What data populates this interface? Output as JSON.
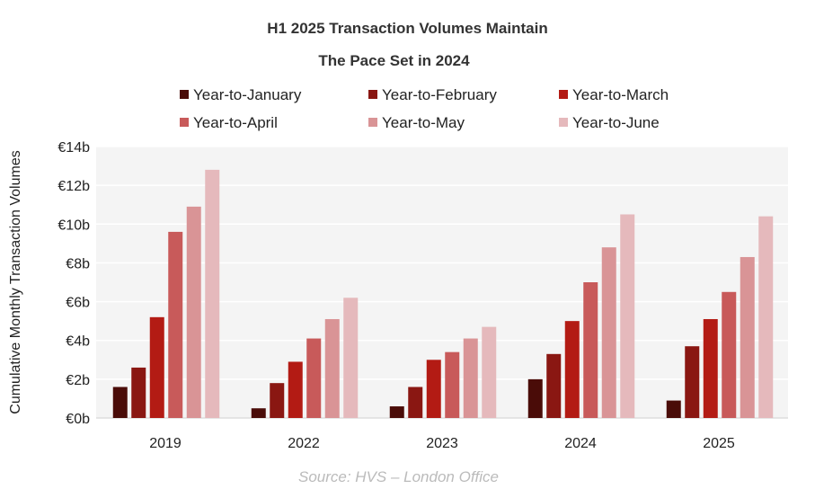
{
  "chart_data": {
    "type": "bar",
    "title_line1": "H1 2025 Transaction Volumes Maintain",
    "title_line2": "The Pace Set in 2024",
    "ylabel": "Cumulative Monthly Transaction Volumes",
    "xlabel": "",
    "categories": [
      "2019",
      "2022",
      "2023",
      "2024",
      "2025"
    ],
    "ylim": [
      0,
      14
    ],
    "yticks": [
      0,
      2,
      4,
      6,
      8,
      10,
      12,
      14
    ],
    "ytick_labels": [
      "€0b",
      "€2b",
      "€4b",
      "€6b",
      "€8b",
      "€10b",
      "€12b",
      "€14b"
    ],
    "grid": true,
    "legend_position": "top",
    "series": [
      {
        "name": "Year-to-January",
        "color": "#4a0c08",
        "values": [
          1.6,
          0.5,
          0.6,
          2.0,
          0.9
        ]
      },
      {
        "name": "Year-to-February",
        "color": "#8a1712",
        "values": [
          2.6,
          1.8,
          1.6,
          3.3,
          3.7
        ]
      },
      {
        "name": "Year-to-March",
        "color": "#b31b14",
        "values": [
          5.2,
          2.9,
          3.0,
          5.0,
          5.1
        ]
      },
      {
        "name": "Year-to-April",
        "color": "#c85a5a",
        "values": [
          9.6,
          4.1,
          3.4,
          7.0,
          6.5
        ]
      },
      {
        "name": "Year-to-May",
        "color": "#d99496",
        "values": [
          10.9,
          5.1,
          4.1,
          8.8,
          8.3
        ]
      },
      {
        "name": "Year-to-June",
        "color": "#e5b9bc",
        "values": [
          12.8,
          6.2,
          4.7,
          10.5,
          10.4
        ]
      }
    ]
  },
  "source": "Source: HVS – London Office"
}
